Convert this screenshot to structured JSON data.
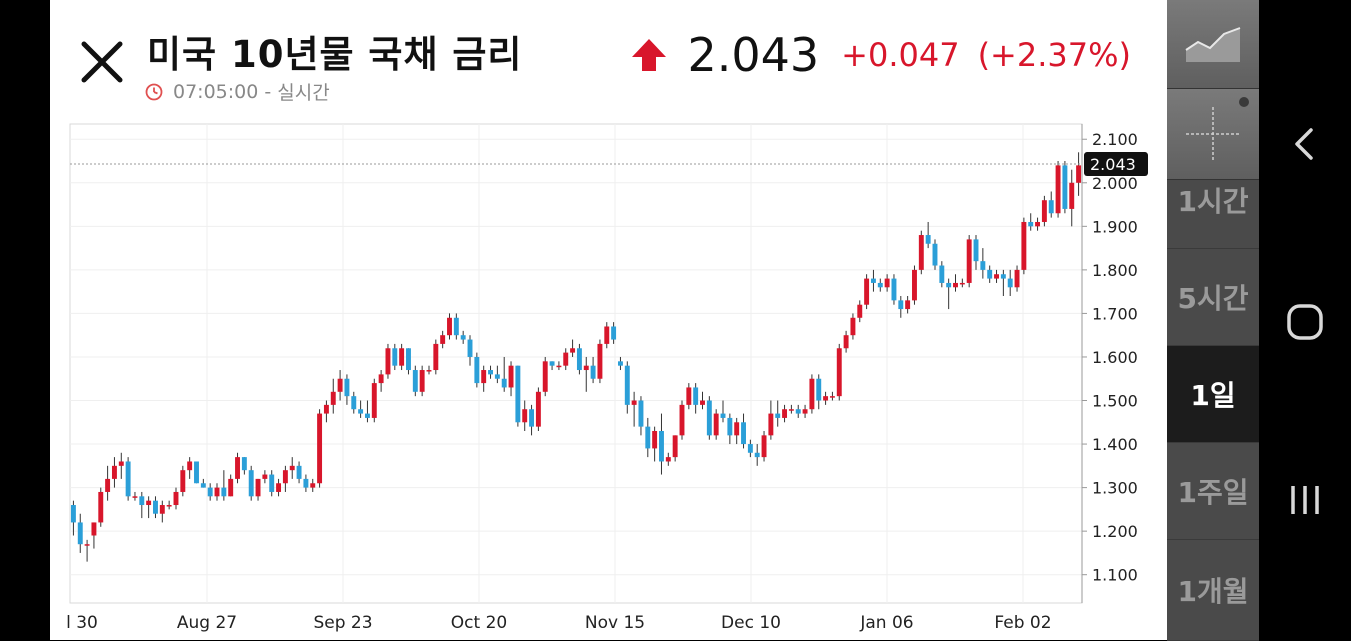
{
  "header": {
    "title": "미국 10년물 국채 금리",
    "time": "07:05:00",
    "time_sep": " - ",
    "mode": "실시간",
    "price": "2.043",
    "change": "+0.047",
    "change_pct": "(+2.37%)",
    "up_color": "#d8162b"
  },
  "chart_data": {
    "type": "candlestick",
    "y_ticks": [
      "2.100",
      "2.000",
      "1.900",
      "1.800",
      "1.700",
      "1.600",
      "1.500",
      "1.400",
      "1.300",
      "1.200",
      "1.100"
    ],
    "x_ticks": [
      "l 30",
      "Aug 27",
      "Sep 23",
      "Oct 20",
      "Nov 15",
      "Dec 10",
      "Jan 06",
      "Feb 02"
    ],
    "ylim": [
      1.035,
      2.135
    ],
    "current_label": "2.043",
    "up_color": "#d8162b",
    "down_color": "#2b9fd8",
    "ohlc": [
      [
        1.26,
        1.27,
        1.19,
        1.22
      ],
      [
        1.22,
        1.24,
        1.15,
        1.17
      ],
      [
        1.17,
        1.18,
        1.13,
        1.17
      ],
      [
        1.19,
        1.22,
        1.16,
        1.22
      ],
      [
        1.22,
        1.3,
        1.21,
        1.29
      ],
      [
        1.29,
        1.35,
        1.27,
        1.32
      ],
      [
        1.32,
        1.37,
        1.3,
        1.35
      ],
      [
        1.35,
        1.38,
        1.32,
        1.36
      ],
      [
        1.36,
        1.37,
        1.27,
        1.28
      ],
      [
        1.28,
        1.29,
        1.27,
        1.28
      ],
      [
        1.28,
        1.29,
        1.23,
        1.26
      ],
      [
        1.26,
        1.28,
        1.23,
        1.27
      ],
      [
        1.27,
        1.28,
        1.23,
        1.24
      ],
      [
        1.24,
        1.27,
        1.22,
        1.26
      ],
      [
        1.26,
        1.27,
        1.25,
        1.26
      ],
      [
        1.26,
        1.3,
        1.25,
        1.29
      ],
      [
        1.29,
        1.35,
        1.28,
        1.34
      ],
      [
        1.34,
        1.37,
        1.32,
        1.36
      ],
      [
        1.36,
        1.36,
        1.31,
        1.31
      ],
      [
        1.31,
        1.32,
        1.3,
        1.3
      ],
      [
        1.3,
        1.31,
        1.27,
        1.28
      ],
      [
        1.28,
        1.31,
        1.27,
        1.3
      ],
      [
        1.3,
        1.34,
        1.27,
        1.28
      ],
      [
        1.28,
        1.33,
        1.28,
        1.32
      ],
      [
        1.32,
        1.38,
        1.31,
        1.37
      ],
      [
        1.37,
        1.37,
        1.33,
        1.34
      ],
      [
        1.34,
        1.35,
        1.27,
        1.28
      ],
      [
        1.28,
        1.32,
        1.27,
        1.32
      ],
      [
        1.32,
        1.34,
        1.31,
        1.33
      ],
      [
        1.33,
        1.34,
        1.28,
        1.29
      ],
      [
        1.29,
        1.32,
        1.28,
        1.31
      ],
      [
        1.31,
        1.35,
        1.29,
        1.34
      ],
      [
        1.34,
        1.37,
        1.32,
        1.35
      ],
      [
        1.35,
        1.36,
        1.31,
        1.32
      ],
      [
        1.32,
        1.33,
        1.29,
        1.3
      ],
      [
        1.3,
        1.32,
        1.29,
        1.31
      ],
      [
        1.31,
        1.48,
        1.3,
        1.47
      ],
      [
        1.47,
        1.5,
        1.45,
        1.49
      ],
      [
        1.49,
        1.55,
        1.47,
        1.52
      ],
      [
        1.52,
        1.57,
        1.5,
        1.55
      ],
      [
        1.55,
        1.56,
        1.49,
        1.51
      ],
      [
        1.51,
        1.52,
        1.47,
        1.48
      ],
      [
        1.48,
        1.5,
        1.46,
        1.47
      ],
      [
        1.47,
        1.5,
        1.45,
        1.46
      ],
      [
        1.46,
        1.55,
        1.45,
        1.54
      ],
      [
        1.54,
        1.57,
        1.52,
        1.56
      ],
      [
        1.56,
        1.63,
        1.55,
        1.62
      ],
      [
        1.62,
        1.63,
        1.57,
        1.58
      ],
      [
        1.58,
        1.63,
        1.57,
        1.62
      ],
      [
        1.62,
        1.62,
        1.56,
        1.57
      ],
      [
        1.57,
        1.58,
        1.51,
        1.52
      ],
      [
        1.52,
        1.58,
        1.51,
        1.57
      ],
      [
        1.57,
        1.58,
        1.56,
        1.57
      ],
      [
        1.57,
        1.64,
        1.56,
        1.63
      ],
      [
        1.63,
        1.66,
        1.62,
        1.65
      ],
      [
        1.65,
        1.7,
        1.64,
        1.69
      ],
      [
        1.69,
        1.7,
        1.64,
        1.65
      ],
      [
        1.65,
        1.66,
        1.63,
        1.64
      ],
      [
        1.64,
        1.65,
        1.58,
        1.6
      ],
      [
        1.6,
        1.61,
        1.53,
        1.54
      ],
      [
        1.54,
        1.58,
        1.52,
        1.57
      ],
      [
        1.57,
        1.58,
        1.55,
        1.56
      ],
      [
        1.56,
        1.58,
        1.54,
        1.55
      ],
      [
        1.55,
        1.6,
        1.52,
        1.53
      ],
      [
        1.53,
        1.59,
        1.51,
        1.58
      ],
      [
        1.58,
        1.58,
        1.44,
        1.45
      ],
      [
        1.45,
        1.5,
        1.43,
        1.48
      ],
      [
        1.48,
        1.49,
        1.42,
        1.44
      ],
      [
        1.44,
        1.53,
        1.43,
        1.52
      ],
      [
        1.52,
        1.6,
        1.51,
        1.59
      ],
      [
        1.59,
        1.59,
        1.57,
        1.58
      ],
      [
        1.58,
        1.59,
        1.57,
        1.58
      ],
      [
        1.58,
        1.62,
        1.57,
        1.61
      ],
      [
        1.61,
        1.64,
        1.6,
        1.62
      ],
      [
        1.62,
        1.63,
        1.56,
        1.57
      ],
      [
        1.57,
        1.6,
        1.52,
        1.58
      ],
      [
        1.58,
        1.6,
        1.54,
        1.55
      ],
      [
        1.55,
        1.64,
        1.54,
        1.63
      ],
      [
        1.63,
        1.68,
        1.62,
        1.67
      ],
      [
        1.67,
        1.68,
        1.63,
        1.64
      ],
      [
        1.59,
        1.6,
        1.57,
        1.58
      ],
      [
        1.58,
        1.59,
        1.47,
        1.49
      ],
      [
        1.49,
        1.52,
        1.44,
        1.5
      ],
      [
        1.5,
        1.51,
        1.42,
        1.44
      ],
      [
        1.44,
        1.46,
        1.37,
        1.39
      ],
      [
        1.39,
        1.44,
        1.36,
        1.43
      ],
      [
        1.43,
        1.47,
        1.33,
        1.36
      ],
      [
        1.36,
        1.38,
        1.35,
        1.37
      ],
      [
        1.37,
        1.42,
        1.36,
        1.42
      ],
      [
        1.42,
        1.5,
        1.41,
        1.49
      ],
      [
        1.49,
        1.54,
        1.48,
        1.53
      ],
      [
        1.53,
        1.54,
        1.47,
        1.49
      ],
      [
        1.49,
        1.52,
        1.48,
        1.5
      ],
      [
        1.5,
        1.51,
        1.41,
        1.42
      ],
      [
        1.42,
        1.48,
        1.41,
        1.47
      ],
      [
        1.47,
        1.5,
        1.45,
        1.46
      ],
      [
        1.46,
        1.47,
        1.4,
        1.42
      ],
      [
        1.42,
        1.46,
        1.4,
        1.45
      ],
      [
        1.45,
        1.47,
        1.39,
        1.4
      ],
      [
        1.4,
        1.41,
        1.37,
        1.38
      ],
      [
        1.38,
        1.4,
        1.35,
        1.37
      ],
      [
        1.37,
        1.43,
        1.36,
        1.42
      ],
      [
        1.42,
        1.5,
        1.41,
        1.47
      ],
      [
        1.47,
        1.5,
        1.44,
        1.46
      ],
      [
        1.46,
        1.49,
        1.45,
        1.48
      ],
      [
        1.48,
        1.49,
        1.47,
        1.48
      ],
      [
        1.48,
        1.49,
        1.46,
        1.47
      ],
      [
        1.47,
        1.49,
        1.46,
        1.48
      ],
      [
        1.48,
        1.56,
        1.47,
        1.55
      ],
      [
        1.55,
        1.56,
        1.48,
        1.5
      ],
      [
        1.5,
        1.52,
        1.49,
        1.51
      ],
      [
        1.51,
        1.52,
        1.5,
        1.51
      ],
      [
        1.51,
        1.63,
        1.5,
        1.62
      ],
      [
        1.62,
        1.66,
        1.61,
        1.65
      ],
      [
        1.65,
        1.7,
        1.64,
        1.69
      ],
      [
        1.69,
        1.73,
        1.68,
        1.72
      ],
      [
        1.72,
        1.79,
        1.71,
        1.78
      ],
      [
        1.78,
        1.8,
        1.75,
        1.77
      ],
      [
        1.77,
        1.78,
        1.75,
        1.76
      ],
      [
        1.76,
        1.79,
        1.75,
        1.78
      ],
      [
        1.78,
        1.79,
        1.72,
        1.73
      ],
      [
        1.73,
        1.74,
        1.69,
        1.71
      ],
      [
        1.71,
        1.74,
        1.7,
        1.73
      ],
      [
        1.73,
        1.81,
        1.72,
        1.8
      ],
      [
        1.8,
        1.89,
        1.79,
        1.88
      ],
      [
        1.88,
        1.91,
        1.85,
        1.86
      ],
      [
        1.86,
        1.87,
        1.8,
        1.81
      ],
      [
        1.81,
        1.82,
        1.76,
        1.77
      ],
      [
        1.77,
        1.78,
        1.71,
        1.76
      ],
      [
        1.76,
        1.79,
        1.75,
        1.77
      ],
      [
        1.77,
        1.78,
        1.76,
        1.77
      ],
      [
        1.77,
        1.88,
        1.76,
        1.87
      ],
      [
        1.87,
        1.88,
        1.8,
        1.82
      ],
      [
        1.82,
        1.85,
        1.78,
        1.8
      ],
      [
        1.8,
        1.81,
        1.77,
        1.78
      ],
      [
        1.78,
        1.8,
        1.77,
        1.79
      ],
      [
        1.79,
        1.8,
        1.74,
        1.78
      ],
      [
        1.78,
        1.8,
        1.74,
        1.76
      ],
      [
        1.76,
        1.81,
        1.75,
        1.8
      ],
      [
        1.8,
        1.92,
        1.79,
        1.91
      ],
      [
        1.91,
        1.93,
        1.89,
        1.9
      ],
      [
        1.9,
        1.92,
        1.89,
        1.91
      ],
      [
        1.91,
        1.97,
        1.9,
        1.96
      ],
      [
        1.96,
        1.98,
        1.92,
        1.93
      ],
      [
        1.93,
        2.05,
        1.92,
        2.04
      ],
      [
        2.04,
        2.05,
        1.93,
        1.94
      ],
      [
        1.94,
        2.03,
        1.9,
        2.0
      ],
      [
        2.0,
        2.07,
        1.97,
        2.04
      ]
    ]
  },
  "periods": {
    "h1": "1시간",
    "h5": "5시간",
    "d1": "1일",
    "w1": "1주일",
    "m1": "1개월"
  }
}
